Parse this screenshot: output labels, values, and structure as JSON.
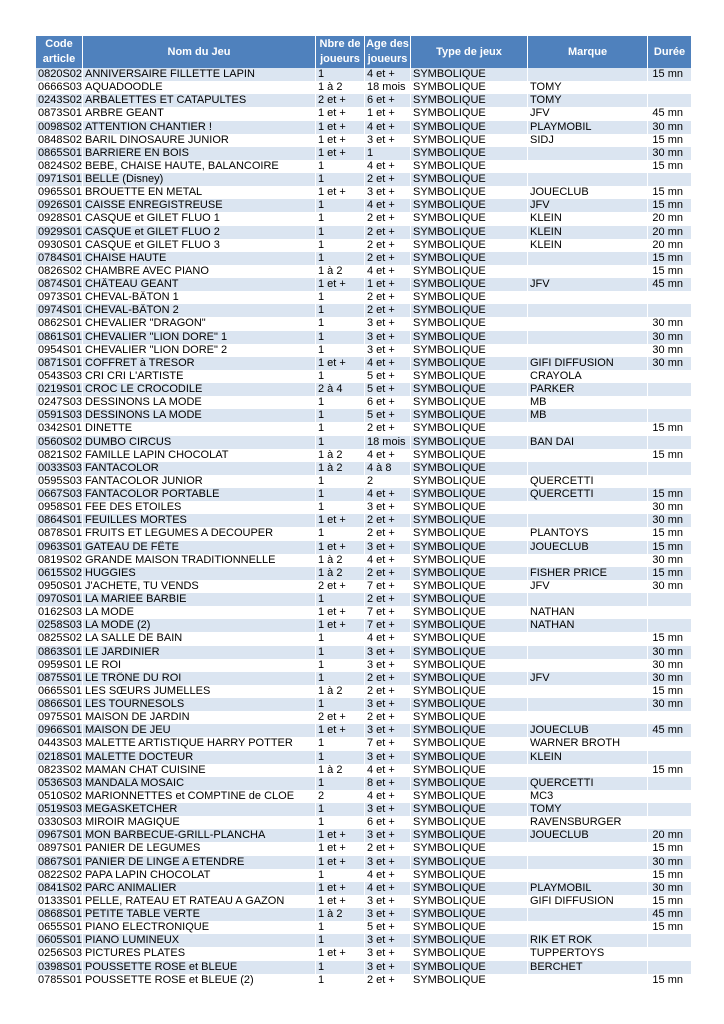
{
  "table": {
    "header": [
      "Code article",
      "Nom du Jeu",
      "Nbre de joueurs",
      "Age des joueurs",
      "Type de jeux",
      "Marque",
      "Durée"
    ],
    "rows": [
      [
        "0820S02",
        "ANNIVERSAIRE FILLETTE LAPIN",
        "1",
        "4 et +",
        "SYMBOLIQUE",
        null,
        "15 mn"
      ],
      [
        "0666S03",
        "AQUADOODLE",
        "1 à 2",
        "18 mois",
        "SYMBOLIQUE",
        "TOMY",
        null
      ],
      [
        "0243S02",
        "ARBALETTES ET CATAPULTES",
        "2 et +",
        "6 et +",
        "SYMBOLIQUE",
        "TOMY",
        null
      ],
      [
        "0873S01",
        "ARBRE GEANT",
        "1 et +",
        "1 et +",
        "SYMBOLIQUE",
        "JFV",
        "45 mn"
      ],
      [
        "0098S02",
        "ATTENTION  CHANTIER  !",
        "1 et +",
        "4 et +",
        "SYMBOLIQUE",
        "PLAYMOBIL",
        "30 mn"
      ],
      [
        "0848S02",
        "BARIL DINOSAURE JUNIOR",
        "1 et +",
        "3 et +",
        "SYMBOLIQUE",
        "SIDJ",
        "15 mn"
      ],
      [
        "0865S01",
        "BARRIERE EN BOIS",
        "1 et +",
        "1",
        "SYMBOLIQUE",
        null,
        "30 mn"
      ],
      [
        "0824S02",
        "BEBE, CHAISE HAUTE, BALANCOIRE",
        "1",
        "4 et +",
        "SYMBOLIQUE",
        null,
        "15 mn"
      ],
      [
        "0971S01",
        "BELLE (Disney)",
        "1",
        "2 et +",
        "SYMBOLIQUE",
        null,
        null
      ],
      [
        "0965S01",
        "BROUETTE EN METAL",
        "1 et +",
        "3 et +",
        "SYMBOLIQUE",
        "JOUECLUB",
        "15 mn"
      ],
      [
        "0926S01",
        "CAISSE ENREGISTREUSE",
        "1",
        "4 et +",
        "SYMBOLIQUE",
        "JFV",
        "15 mn"
      ],
      [
        "0928S01",
        "CASQUE et GILET FLUO 1",
        "1",
        "2 et +",
        "SYMBOLIQUE",
        "KLEIN",
        "20 mn"
      ],
      [
        "0929S01",
        "CASQUE et GILET FLUO 2",
        "1",
        "2 et +",
        "SYMBOLIQUE",
        "KLEIN",
        "20 mn"
      ],
      [
        "0930S01",
        "CASQUE et GILET FLUO 3",
        "1",
        "2 et +",
        "SYMBOLIQUE",
        "KLEIN",
        "20 mn"
      ],
      [
        "0784S01",
        "CHAISE HAUTE",
        "1",
        "2 et +",
        "SYMBOLIQUE",
        null,
        "15 mn"
      ],
      [
        "0826S02",
        "CHAMBRE AVEC PIANO",
        "1 à 2",
        "4 et +",
        "SYMBOLIQUE",
        null,
        "15 mn"
      ],
      [
        "0874S01",
        "CHÂTEAU GEANT",
        "1 et +",
        "1 et +",
        "SYMBOLIQUE",
        "JFV",
        "45 mn"
      ],
      [
        "0973S01",
        "CHEVAL-BÂTON 1",
        "1",
        "2 et +",
        "SYMBOLIQUE",
        null,
        null
      ],
      [
        "0974S01",
        "CHEVAL-BÂTON 2",
        "1",
        "2 et +",
        "SYMBOLIQUE",
        null,
        null
      ],
      [
        "0862S01",
        "CHEVALIER \"DRAGON\"",
        "1",
        "3 et +",
        "SYMBOLIQUE",
        null,
        "30 mn"
      ],
      [
        "0861S01",
        "CHEVALIER \"LION DORE\" 1",
        "1",
        "3 et +",
        "SYMBOLIQUE",
        null,
        "30 mn"
      ],
      [
        "0954S01",
        "CHEVALIER \"LION DORE\" 2",
        "1",
        "3 et +",
        "SYMBOLIQUE",
        null,
        "30 mn"
      ],
      [
        "0871S01",
        "COFFRET à TRESOR",
        "1 et +",
        "4 et +",
        "SYMBOLIQUE",
        "GIFI DIFFUSION",
        "30 mn"
      ],
      [
        "0543S03",
        "CRI CRI L'ARTISTE",
        "1",
        "5 et +",
        "SYMBOLIQUE",
        "CRAYOLA",
        null
      ],
      [
        "0219S01",
        "CROC LE CROCODILE",
        "2 à 4",
        "5 et +",
        "SYMBOLIQUE",
        "PARKER",
        null
      ],
      [
        "0247S03",
        "DESSINONS LA MODE",
        "1",
        "6 et +",
        "SYMBOLIQUE",
        "MB",
        null
      ],
      [
        "0591S03",
        "DESSINONS LA MODE",
        "1",
        "5 et +",
        "SYMBOLIQUE",
        "MB",
        null
      ],
      [
        "0342S01",
        "DINETTE",
        "1",
        "2 et +",
        "SYMBOLIQUE",
        null,
        "15 mn"
      ],
      [
        "0560S02",
        "DUMBO CIRCUS",
        "1",
        "18 mois",
        "SYMBOLIQUE",
        "BAN DAI",
        null
      ],
      [
        "0821S02",
        "FAMILLE LAPIN CHOCOLAT",
        "1 à 2",
        "4 et +",
        "SYMBOLIQUE",
        null,
        "15 mn"
      ],
      [
        "0033S03",
        "FANTACOLOR",
        "1 à 2",
        "4 à 8",
        "SYMBOLIQUE",
        null,
        null
      ],
      [
        "0595S03",
        "FANTACOLOR JUNIOR",
        "1",
        "2",
        "SYMBOLIQUE",
        "QUERCETTI",
        null
      ],
      [
        "0667S03",
        "FANTACOLOR PORTABLE",
        "1",
        "4 et +",
        "SYMBOLIQUE",
        "QUERCETTI",
        "15 mn"
      ],
      [
        "0958S01",
        "FEE DES ETOILES",
        "1",
        "3 et +",
        "SYMBOLIQUE",
        null,
        "30 mn"
      ],
      [
        "0864S01",
        "FEUILLES MORTES",
        "1 et +",
        "2 et +",
        "SYMBOLIQUE",
        null,
        "30 mn"
      ],
      [
        "0878S01",
        "FRUITS ET LEGUMES A DECOUPER",
        "1",
        "2 et +",
        "SYMBOLIQUE",
        "PLANTOYS",
        "15 mn"
      ],
      [
        "0963S01",
        "GATEAU DE FÊTE",
        "1 et +",
        "3 et +",
        "SYMBOLIQUE",
        "JOUECLUB",
        "15 mn"
      ],
      [
        "0819S02",
        "GRANDE MAISON TRADITIONNELLE",
        "1 à 2",
        "4 et +",
        "SYMBOLIQUE",
        null,
        "30 mn"
      ],
      [
        "0615S02",
        "HUGGIES",
        "1 à 2",
        "2 et +",
        "SYMBOLIQUE",
        "FISHER PRICE",
        "15 mn"
      ],
      [
        "0950S01",
        "J'ACHETE, TU VENDS",
        "2 et +",
        "7 et +",
        "SYMBOLIQUE",
        "JFV",
        "30 mn"
      ],
      [
        "0970S01",
        "LA MARIEE BARBIE",
        "1",
        "2 et +",
        "SYMBOLIQUE",
        null,
        null
      ],
      [
        "0162S03",
        "LA MODE",
        "1 et +",
        "7 et +",
        "SYMBOLIQUE",
        "NATHAN",
        null
      ],
      [
        "0258S03",
        "LA MODE (2)",
        "1 et +",
        "7 et +",
        "SYMBOLIQUE",
        "NATHAN",
        null
      ],
      [
        "0825S02",
        "LA SALLE DE BAIN",
        "1",
        "4 et +",
        "SYMBOLIQUE",
        null,
        "15 mn"
      ],
      [
        "0863S01",
        "LE JARDINIER",
        "1",
        "3 et +",
        "SYMBOLIQUE",
        null,
        "30 mn"
      ],
      [
        "0959S01",
        "LE ROI",
        "1",
        "3 et +",
        "SYMBOLIQUE",
        null,
        "30 mn"
      ],
      [
        "0875S01",
        "LE TRÔNE DU ROI",
        "1",
        "2 et +",
        "SYMBOLIQUE",
        "JFV",
        "30 mn"
      ],
      [
        "0665S01",
        "LES SŒURS JUMELLES",
        "1 à 2",
        "2 et +",
        "SYMBOLIQUE",
        null,
        "15 mn"
      ],
      [
        "0866S01",
        "LES TOURNESOLS",
        "1",
        "3 et +",
        "SYMBOLIQUE",
        null,
        "30 mn"
      ],
      [
        "0975S01",
        "MAISON DE JARDIN",
        "2 et +",
        "2 et +",
        "SYMBOLIQUE",
        null,
        null
      ],
      [
        "0966S01",
        "MAISON DE JEU",
        "1 et +",
        "3 et +",
        "SYMBOLIQUE",
        "JOUECLUB",
        "45 mn"
      ],
      [
        "0443S03",
        "MALETTE ARTISTIQUE HARRY POTTER",
        "1",
        "7 et +",
        "SYMBOLIQUE",
        "WARNER BROTH",
        null
      ],
      [
        "0218S01",
        "MALETTE DOCTEUR",
        "1",
        "3 et +",
        "SYMBOLIQUE",
        "KLEIN",
        null
      ],
      [
        "0823S02",
        "MAMAN CHAT CUISINE",
        "1 à 2",
        "4 et +",
        "SYMBOLIQUE",
        null,
        "15 mn"
      ],
      [
        "0536S03",
        "MANDALA MOSAIC",
        "1",
        "8 et +",
        "SYMBOLIQUE",
        "QUERCETTI",
        null
      ],
      [
        "0510S02",
        "MARIONNETTES et COMPTINE de CLOE",
        "2",
        "4 et +",
        "SYMBOLIQUE",
        "MC3",
        null
      ],
      [
        "0519S03",
        "MEGASKETCHER",
        "1",
        "3 et +",
        "SYMBOLIQUE",
        "TOMY",
        null
      ],
      [
        "0330S03",
        "MIROIR MAGIQUE",
        "1",
        "6 et +",
        "SYMBOLIQUE",
        "RAVENSBURGER",
        null
      ],
      [
        "0967S01",
        "MON BARBECUE-GRILL-PLANCHA",
        "1 et +",
        "3 et +",
        "SYMBOLIQUE",
        "JOUECLUB",
        "20 mn"
      ],
      [
        "0897S01",
        "PANIER DE LEGUMES",
        "1 et +",
        "2 et +",
        "SYMBOLIQUE",
        null,
        "15 mn"
      ],
      [
        "0867S01",
        "PANIER DE LINGE A ETENDRE",
        "1 et +",
        "3 et +",
        "SYMBOLIQUE",
        null,
        "30 mn"
      ],
      [
        "0822S02",
        "PAPA LAPIN CHOCOLAT",
        "1",
        "4 et +",
        "SYMBOLIQUE",
        null,
        "15 mn"
      ],
      [
        "0841S02",
        "PARC ANIMALIER",
        "1 et +",
        "4 et +",
        "SYMBOLIQUE",
        "PLAYMOBIL",
        "30 mn"
      ],
      [
        "0133S01",
        "PELLE, RATEAU ET RATEAU A GAZON",
        "1 et +",
        "3 et +",
        "SYMBOLIQUE",
        "GIFI DIFFUSION",
        "15 mn"
      ],
      [
        "0868S01",
        "PETITE TABLE VERTE",
        "1 à 2",
        "3 et +",
        "SYMBOLIQUE",
        null,
        "45 mn"
      ],
      [
        "0655S01",
        "PIANO ELECTRONIQUE",
        "1",
        "5 et +",
        "SYMBOLIQUE",
        null,
        "15 mn"
      ],
      [
        "0605S01",
        "PIANO LUMINEUX",
        "1",
        "3 et +",
        "SYMBOLIQUE",
        "RIK ET ROK",
        null
      ],
      [
        "0256S03",
        "PICTURES PLATES",
        "1 et +",
        "3 et +",
        "SYMBOLIQUE",
        "TUPPERTOYS",
        null
      ],
      [
        "0398S01",
        "POUSSETTE ROSE et BLEUE",
        "1",
        "3 et +",
        "SYMBOLIQUE",
        "BERCHET",
        null
      ],
      [
        "0785S01",
        "POUSSETTE ROSE et BLEUE (2)",
        "1",
        "2 et +",
        "SYMBOLIQUE",
        null,
        "15 mn"
      ]
    ]
  }
}
